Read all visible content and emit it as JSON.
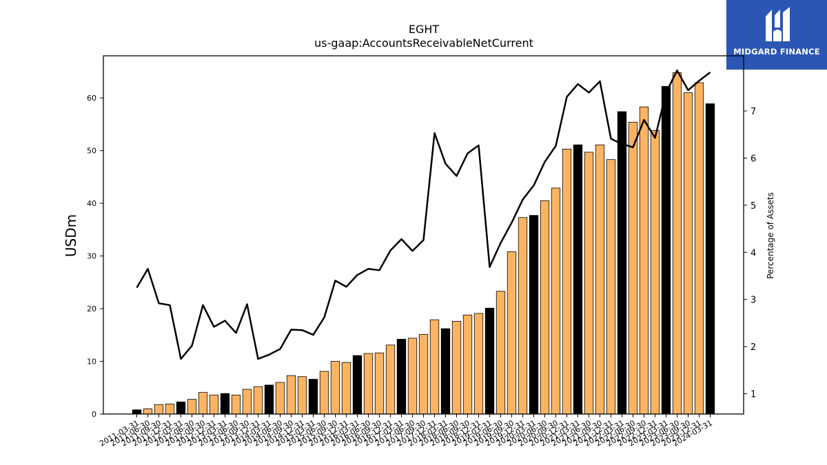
{
  "title": "EGHT",
  "subtitle": "us-gaap:AccountsReceivableNetCurrent",
  "logo": {
    "text": "MIDGARD FINANCE",
    "color": "#2b56b3"
  },
  "chart_data": {
    "type": "bar",
    "categories": [
      "2011-03-31",
      "2011-06-30",
      "2011-09-30",
      "2011-12-31",
      "2012-03-31",
      "2012-06-30",
      "2012-09-30",
      "2012-12-31",
      "2013-03-31",
      "2013-06-30",
      "2013-09-30",
      "2013-12-31",
      "2014-03-31",
      "2014-06-30",
      "2014-09-30",
      "2014-12-31",
      "2015-03-31",
      "2015-06-30",
      "2015-09-30",
      "2015-12-31",
      "2016-03-31",
      "2016-06-30",
      "2016-09-30",
      "2016-12-31",
      "2017-03-31",
      "2017-06-30",
      "2017-09-30",
      "2017-12-31",
      "2018-03-31",
      "2018-06-30",
      "2018-09-30",
      "2018-12-31",
      "2019-03-31",
      "2019-06-30",
      "2019-09-30",
      "2019-12-31",
      "2020-03-31",
      "2020-06-30",
      "2020-09-30",
      "2020-12-31",
      "2021-03-31",
      "2021-06-30",
      "2021-09-30",
      "2021-12-31",
      "2022-03-31",
      "2022-06-30",
      "2022-09-30",
      "2022-12-31",
      "2023-03-31",
      "2023-06-30",
      "2023-09-30",
      "2023-12-31",
      "2024-03-31"
    ],
    "series": [
      {
        "axis": "left",
        "type": "bar",
        "values": [
          0.8,
          1.0,
          1.8,
          1.9,
          2.3,
          2.8,
          4.1,
          3.6,
          3.9,
          3.6,
          4.7,
          5.2,
          5.5,
          6.0,
          7.3,
          7.1,
          6.6,
          8.1,
          10.0,
          9.8,
          11.1,
          11.5,
          11.6,
          13.1,
          14.2,
          14.4,
          15.1,
          17.9,
          16.2,
          17.6,
          18.8,
          19.1,
          20.1,
          23.3,
          30.8,
          37.3,
          37.7,
          40.5,
          42.9,
          50.3,
          51.1,
          49.7,
          51.1,
          48.3,
          57.4,
          55.4,
          58.3,
          53.8,
          62.2,
          64.8,
          61.0,
          62.9,
          58.9
        ],
        "highlight_months": [
          "03"
        ],
        "colors": {
          "normal": "#fdb462",
          "highlight": "#000000"
        }
      },
      {
        "axis": "right",
        "type": "line",
        "values": [
          3.25,
          3.65,
          2.92,
          2.88,
          1.74,
          2.02,
          2.88,
          2.42,
          2.55,
          2.29,
          2.9,
          1.74,
          1.83,
          1.95,
          2.36,
          2.35,
          2.25,
          2.62,
          3.4,
          3.27,
          3.52,
          3.65,
          3.62,
          4.04,
          4.28,
          4.03,
          4.26,
          6.53,
          5.88,
          5.62,
          6.1,
          6.27,
          3.69,
          4.2,
          4.63,
          5.12,
          5.42,
          5.92,
          6.26,
          7.3,
          7.57,
          7.39,
          7.63,
          6.41,
          6.3,
          6.23,
          6.81,
          6.43,
          7.39,
          7.86,
          7.44,
          7.64,
          7.82
        ],
        "color": "#000000"
      }
    ],
    "ylabel": "USDm",
    "ylabel_right": "Percentage of Assets",
    "ylim": [
      0,
      68
    ],
    "ylim_right": [
      0.57,
      8.17
    ],
    "yticks": [
      0,
      10,
      20,
      30,
      40,
      50,
      60
    ],
    "yticks_right": [
      1,
      2,
      3,
      4,
      5,
      6,
      7
    ],
    "grid": false
  }
}
